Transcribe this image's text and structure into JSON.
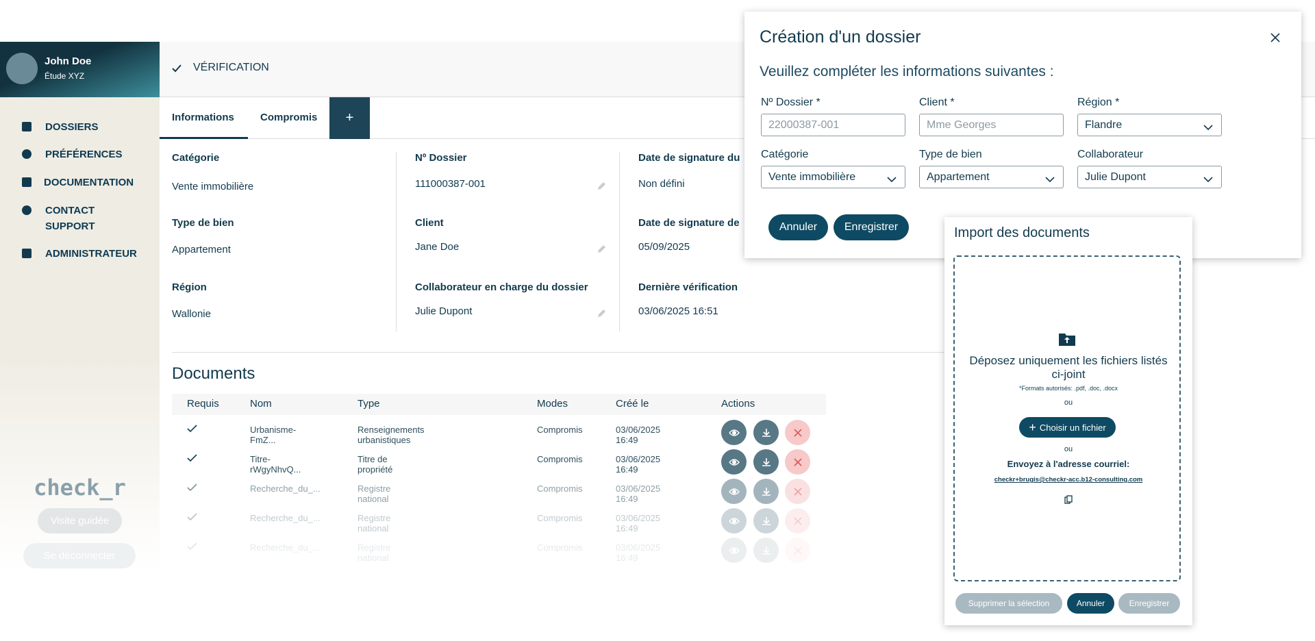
{
  "sidebar": {
    "user_name": "John Doe",
    "user_org": "Étude XYZ",
    "nav": [
      "DOSSIERS",
      "PRÉFÉRENCES",
      "DOCUMENTATION",
      "CONTACT",
      "SUPPORT",
      "ADMINISTRATEUR"
    ],
    "logo": "check_r",
    "guided_tour": "Visite guidée",
    "logout": "Se déconnecter"
  },
  "header": {
    "step": "VÉRIFICATION"
  },
  "tabs": [
    "Informations",
    "Compromis",
    "+"
  ],
  "info": [
    {
      "label": "Catégorie",
      "value": "Vente immobilière"
    },
    {
      "label": "Nº Dossier",
      "value": "111000387-001"
    },
    {
      "label": "Date de signature du",
      "value": "Non défini"
    },
    {
      "label": "Type de bien",
      "value": "Appartement"
    },
    {
      "label": "Client",
      "value": "Jane Doe"
    },
    {
      "label": "Date de signature de",
      "value": "05/09/2025"
    },
    {
      "label": "Région",
      "value": "Wallonie"
    },
    {
      "label": "Collaborateur en charge du dossier",
      "value": "Julie Dupont"
    },
    {
      "label": "Dernière vérification",
      "value": "03/06/2025 16:51"
    }
  ],
  "documents": {
    "title": "Documents",
    "columns": [
      "Requis",
      "Nom",
      "Type",
      "Modes",
      "Créé le",
      "Actions"
    ],
    "rows": [
      [
        "Urbanisme-FmZ...",
        "Renseignements urbanistiques",
        "Compromis",
        "03/06/2025 16:49"
      ],
      [
        "Titre-rWgyNhvQ...",
        "Titre de propriété",
        "Compromis",
        "03/06/2025 16:49"
      ],
      [
        "Recherche_du_...",
        "Registre national",
        "Compromis",
        "03/06/2025 16:49"
      ],
      [
        "Recherche_du_...",
        "Registre national",
        "Compromis",
        "03/06/2025 16:49"
      ],
      [
        "Recherche_du_...",
        "Registre national",
        "Compromis",
        "03/06/2025 16:49"
      ]
    ]
  },
  "modal": {
    "title": "Création d'un dossier",
    "subtitle": "Veuillez compléter les informations suivantes :",
    "fields": [
      {
        "label": "Nº Dossier *",
        "value": "22000387-001"
      },
      {
        "label": "Client *",
        "value": "Mme Georges"
      },
      {
        "label": "Région *",
        "value": "Flandre"
      },
      {
        "label": "Catégorie",
        "value": "Vente immobilière"
      },
      {
        "label": "Type de bien",
        "value": "Appartement"
      },
      {
        "label": "Collaborateur",
        "value": "Julie Dupont"
      }
    ],
    "cancel": "Annuler",
    "save": "Enregistrer"
  },
  "import": {
    "title": "Import des documents",
    "drop_text": "Déposez uniquement les fichiers listés ci-joint",
    "formats": "*Formats autorisés: .pdf, .doc, .docx",
    "or1": "ou",
    "choose": "Choisir un fichier",
    "or2": "ou",
    "send_to": "Envoyez à l'adresse courriel:",
    "email": "checkr+brugis@checkr-acc.b12-consulting.com",
    "delete": "Supprimer la sélection",
    "cancel": "Annuler",
    "save": "Enregistrer"
  }
}
